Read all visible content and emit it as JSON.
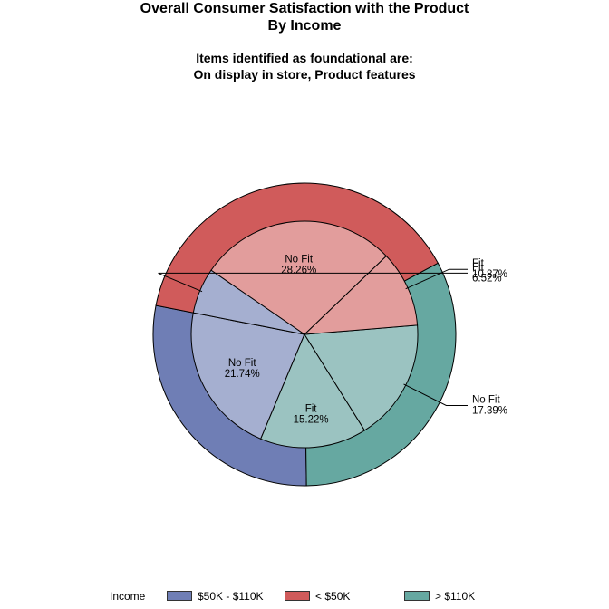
{
  "header": {
    "title_line1": "Overall Consumer Satisfaction with the Product",
    "title_line2": "By Income",
    "subtitle_line1": "Items identified as foundational are:",
    "subtitle_line2": "On display in store, Product features"
  },
  "legend": {
    "title": "Income",
    "items": [
      {
        "label": "$50K - $110K",
        "color": "#6f7eb5"
      },
      {
        "label": "< $50K",
        "color": "#d05b5b"
      },
      {
        "label": "> $110K",
        "color": "#66a8a1"
      }
    ]
  },
  "chart_data": {
    "type": "pie",
    "subtype": "nested-donut",
    "title": "Overall Consumer Satisfaction with the Product",
    "outer_ring": {
      "name": "Income",
      "slices": [
        {
          "category": "$50K - $110K",
          "value": 28.26,
          "color": "#6f7eb5"
        },
        {
          "category": "> $110K",
          "value": 32.61,
          "color": "#66a8a1"
        },
        {
          "category": "< $50K",
          "value": 39.13,
          "color": "#d05b5b"
        }
      ]
    },
    "inner_pie": {
      "slices": [
        {
          "group": "$50K - $110K",
          "label": "No Fit",
          "value": 21.74,
          "display": "21.74%",
          "color": "#a5afd0"
        },
        {
          "group": "> $110K",
          "label": "Fit",
          "value": 15.22,
          "display": "15.22%",
          "color": "#9bc3c1"
        },
        {
          "group": "> $110K",
          "label": "No Fit",
          "value": 17.39,
          "display": "17.39%",
          "color": "#9bc3c1"
        },
        {
          "group": "< $50K",
          "label": "Fit",
          "value": 10.87,
          "display": "10.87%",
          "color": "#e29d9c"
        },
        {
          "group": "< $50K",
          "label": "No Fit",
          "value": 28.26,
          "display": "28.26%",
          "color": "#e29d9c"
        },
        {
          "group": "$50K - $110K",
          "label": "Fit",
          "value": 6.52,
          "display": "6.52%",
          "color": "#a5afd0"
        }
      ]
    },
    "legend_position": "bottom"
  }
}
